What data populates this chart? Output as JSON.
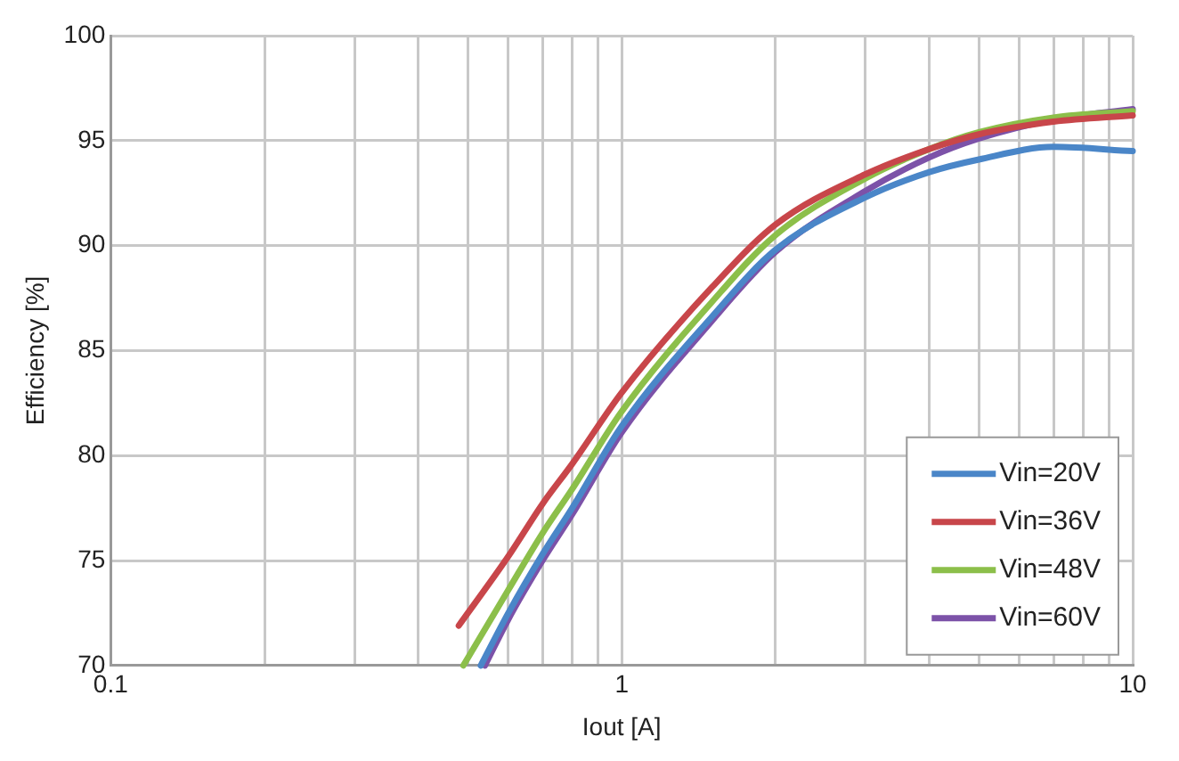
{
  "chart_data": {
    "type": "line",
    "xlabel": "Iout [A]",
    "ylabel": "Efficiency [%]",
    "log": "x",
    "xlim": [
      0.1,
      10
    ],
    "ylim": [
      70,
      100
    ],
    "xticks": [
      0.1,
      {
        "value": 0.2,
        "label": null
      },
      {
        "value": 0.3,
        "label": null
      },
      {
        "value": 0.4,
        "label": null
      },
      {
        "value": 0.5,
        "label": null
      },
      {
        "value": 0.6,
        "label": null
      },
      {
        "value": 0.7,
        "label": null
      },
      {
        "value": 0.8,
        "label": null
      },
      {
        "value": 0.9,
        "label": null
      },
      1,
      {
        "value": 2,
        "label": null
      },
      {
        "value": 3,
        "label": null
      },
      {
        "value": 4,
        "label": null
      },
      {
        "value": 5,
        "label": null
      },
      {
        "value": 6,
        "label": null
      },
      {
        "value": 7,
        "label": null
      },
      {
        "value": 8,
        "label": null
      },
      {
        "value": 9,
        "label": null
      },
      10
    ],
    "yticks": [
      70,
      75,
      80,
      85,
      90,
      95,
      100
    ],
    "grid": true,
    "legend": "bottom right",
    "marker": "none",
    "line_style": "solid",
    "series": [
      {
        "name": "Vin=20V",
        "color": "#4a86c8",
        "x": [
          0.53,
          0.6,
          0.7,
          0.8,
          1,
          1.5,
          2,
          3,
          4,
          5,
          7,
          10
        ],
        "values": [
          70,
          72.5,
          75.3,
          77.5,
          81.4,
          86.6,
          89.8,
          92.3,
          93.5,
          94.1,
          94.7,
          94.5
        ]
      },
      {
        "name": "Vin=36V",
        "color": "#c8464a",
        "x": [
          0.48,
          0.6,
          0.7,
          0.8,
          1,
          1.5,
          2,
          3,
          4,
          5,
          7,
          10
        ],
        "values": [
          71.9,
          75.2,
          77.7,
          79.6,
          83,
          88,
          91,
          93.4,
          94.6,
          95.3,
          95.9,
          96.2
        ]
      },
      {
        "name": "Vin=48V",
        "color": "#8cbf4a",
        "x": [
          0.49,
          0.6,
          0.7,
          0.8,
          1,
          1.5,
          2,
          3,
          4,
          5,
          7,
          10
        ],
        "values": [
          70,
          73.6,
          76.3,
          78.4,
          82.1,
          87.3,
          90.5,
          93.2,
          94.6,
          95.4,
          96.1,
          96.4
        ]
      },
      {
        "name": "Vin=60V",
        "color": "#7c52a8",
        "x": [
          0.54,
          0.6,
          0.7,
          0.8,
          1,
          1.5,
          2,
          3,
          4,
          5,
          7,
          10
        ],
        "values": [
          70,
          72.2,
          75,
          77.2,
          81.1,
          86.4,
          89.7,
          92.6,
          94.2,
          95.1,
          96,
          96.5
        ]
      }
    ]
  }
}
